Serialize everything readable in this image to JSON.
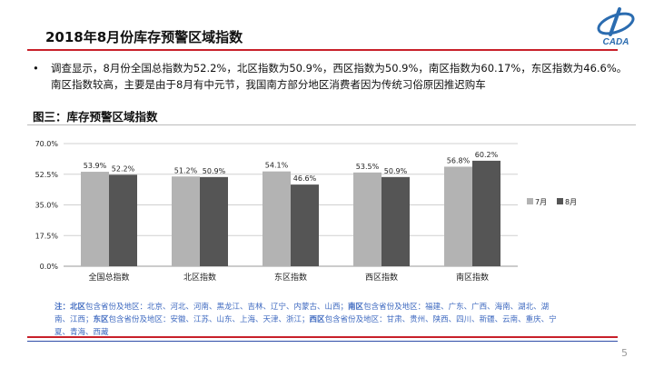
{
  "header": {
    "title": "2018年8月份库存预警区域指数"
  },
  "bullet": {
    "symbol": "•",
    "text": "调查显示，8月份全国总指数为52.2%，北区指数为50.9%，西区指数为50.9%，南区指数为60.17%，东区指数为46.6%。南区指数较高，主要是由于8月有中元节，我国南方部分地区消费者因为传统习俗原因推迟购车"
  },
  "figure": {
    "title": "图三：库存预警区域指数"
  },
  "chart_data": {
    "type": "bar",
    "categories": [
      "全国总指数",
      "北区指数",
      "东区指数",
      "西区指数",
      "南区指数"
    ],
    "series": [
      {
        "name": "7月",
        "values": [
          53.9,
          51.2,
          54.1,
          53.5,
          56.8
        ],
        "labels": [
          "53.9%",
          "51.2%",
          "54.1%",
          "53.5%",
          "56.8%"
        ],
        "color": "#b3b3b3"
      },
      {
        "name": "8月",
        "values": [
          52.2,
          50.9,
          46.6,
          50.9,
          60.2
        ],
        "labels": [
          "52.2%",
          "50.9%",
          "46.6%",
          "50.9%",
          "60.2%"
        ],
        "color": "#555555"
      }
    ],
    "yticks": [
      "0.0%",
      "17.5%",
      "35.0%",
      "52.5%",
      "70.0%"
    ],
    "ylim": [
      0,
      70
    ],
    "grid": true,
    "legend_position": "right"
  },
  "note": {
    "prefix": "注：",
    "north_label": "北区",
    "north_text": "包含省份及地区：北京、河北、河南、黑龙江、吉林、辽宁、内蒙古、山西；",
    "south_label": "南区",
    "south_text": "包含省份及地区：福建、广东、广西、海南、湖北、湖南、江西；",
    "east_label": "东区",
    "east_text": "包含省份及地区：安徽、江苏、山东、上海、天津、浙江；",
    "west_label": "西区",
    "west_text": "包含省份及地区：甘肃、贵州、陕西、四川、新疆、云南、重庆、宁夏、青海、西藏"
  },
  "footer": {
    "page": "5"
  },
  "colors": {
    "accent_red": "#c8202a",
    "note_blue": "#3f6ac0",
    "logo_blue": "#2b6cb0"
  }
}
